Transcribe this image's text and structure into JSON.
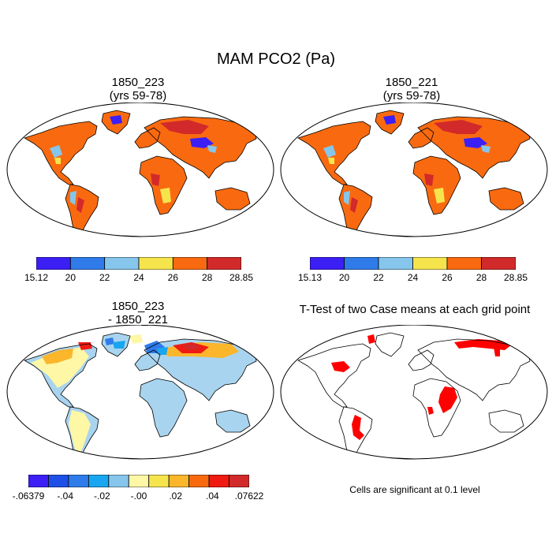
{
  "main_title": "MAM PCO2 (Pa)",
  "panels": {
    "top_left": {
      "title_line1": "1850_223",
      "title_line2": "(yrs 59-78)"
    },
    "top_right": {
      "title_line1": "1850_221",
      "title_line2": "(yrs 59-78)"
    },
    "bottom_left": {
      "title_line1": "1850_223",
      "title_line2": "- 1850_221"
    },
    "bottom_right": {
      "title": "T-Test of two Case means at each grid point",
      "note": "Cells are significant at 0.1 level"
    }
  },
  "colorbars": {
    "top_left": {
      "colors": [
        "#3b1ff5",
        "#2f7bea",
        "#86c6ec",
        "#f6e44d",
        "#f96a10",
        "#d22a2a"
      ],
      "labels": [
        "15.12",
        "20",
        "22",
        "24",
        "26",
        "28",
        "28.85"
      ]
    },
    "top_right": {
      "colors": [
        "#3b1ff5",
        "#2f7bea",
        "#86c6ec",
        "#f6e44d",
        "#f96a10",
        "#d22a2a"
      ],
      "labels": [
        "15.13",
        "20",
        "22",
        "24",
        "26",
        "28",
        "28.85"
      ]
    },
    "bottom_left": {
      "colors": [
        "#3b1ff5",
        "#1e4fe6",
        "#2f7bea",
        "#18a6f0",
        "#86c6ec",
        "#fdf7a6",
        "#f6e44d",
        "#fbb62c",
        "#f96a10",
        "#ef1b12",
        "#d22a2a"
      ],
      "labels": [
        "-.06379",
        "-.04",
        "-.02",
        "-.00",
        ".02",
        ".04",
        ".07622"
      ]
    }
  },
  "colors": {
    "land_mean": "#f96a10",
    "land_diff": "#a9d4ef",
    "significant": "#ff0000",
    "antarctica_mean": "#3b1ff5",
    "antarctica_diff": "#2f7bea"
  }
}
